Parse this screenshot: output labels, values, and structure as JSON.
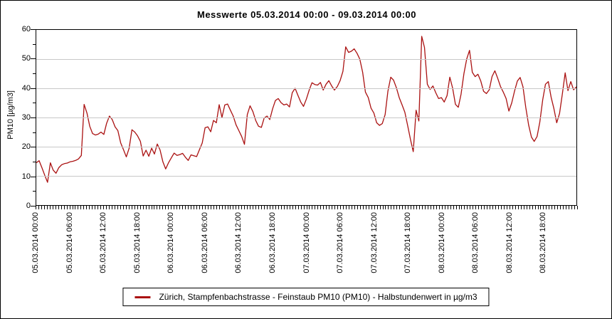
{
  "title": "Messwerte 05.03.2014 00:00 - 09.03.2014 00:00",
  "colors": {
    "line": "#aa1111",
    "grid": "#c8c8c8",
    "axis": "#000000",
    "background": "#ffffff"
  },
  "legend": {
    "label": "Zürich, Stampfenbachstrasse - Feinstaub PM10  (PM10) - Halbstundenwert in µg/m3",
    "line_color": "#aa1111"
  },
  "y_axis": {
    "title": "PM10 [µg/m3]",
    "tick_labels": [
      "0",
      "10",
      "20",
      "30",
      "40",
      "50",
      "60"
    ],
    "major_step": 10,
    "minor_step": 5
  },
  "x_axis": {
    "tick_labels": [
      "05.03.2014 00:00",
      "05.03.2014 06:00",
      "05.03.2014 12:00",
      "05.03.2014 18:00",
      "06.03.2014 00:00",
      "06.03.2014 06:00",
      "06.03.2014 12:00",
      "06.03.2014 18:00",
      "07.03.2014 00:00",
      "07.03.2014 06:00",
      "07.03.2014 12:00",
      "07.03.2014 18:00",
      "08.03.2014 00:00",
      "08.03.2014 06:00",
      "08.03.2014 12:00",
      "08.03.2014 18:00"
    ],
    "minor_ticks_per_label": 12
  },
  "chart_data": {
    "type": "line",
    "title": "Messwerte 05.03.2014 00:00 - 09.03.2014 00:00",
    "xlabel": "",
    "ylabel": "PM10 [µg/m3]",
    "ylim": [
      0,
      60
    ],
    "xlim": [
      "05.03.2014 00:00",
      "09.03.2014 00:00"
    ],
    "grid": "horizontal-only",
    "legend_position": "bottom-center",
    "x_start": "05.03.2014 00:00",
    "x_step_minutes": 30,
    "series": [
      {
        "name": "Zürich, Stampfenbachstrasse - Feinstaub PM10  (PM10) - Halbstundenwert in µg/m3",
        "color": "#aa1111",
        "values": [
          14.5,
          15.2,
          12.8,
          10.2,
          7.8,
          14.5,
          12,
          10.9,
          12.8,
          13.8,
          14.2,
          14.4,
          14.8,
          15,
          15.3,
          15.8,
          17,
          34.5,
          31.5,
          27,
          24.5,
          24,
          24.3,
          25,
          24.2,
          28,
          30.5,
          29.3,
          26.8,
          25.5,
          21.3,
          19,
          16.5,
          19.5,
          25.8,
          25,
          23.7,
          21.8,
          16.8,
          18.8,
          16.7,
          19.5,
          17.5,
          20.9,
          18.9,
          14.8,
          12.4,
          14.5,
          16.2,
          17.8,
          17,
          17.3,
          17.7,
          16.4,
          15.3,
          17.2,
          16.9,
          16.6,
          19,
          21.3,
          26.5,
          26.8,
          25.1,
          29,
          28.2,
          34.4,
          30,
          34.3,
          34.6,
          32.5,
          30.5,
          27.5,
          25.5,
          23.5,
          20.8,
          31,
          34,
          32,
          29,
          27,
          26.6,
          29.8,
          30.5,
          29.3,
          33,
          35.8,
          36.5,
          35.1,
          34.3,
          34.6,
          33.6,
          38.5,
          40,
          37.6,
          35.3,
          33.8,
          36.3,
          39.4,
          41.9,
          41.3,
          41.1,
          42,
          39.4,
          41.4,
          42.6,
          40.8,
          39.4,
          40.6,
          42.6,
          45.8,
          54.2,
          52.3,
          52.7,
          53.5,
          52,
          50,
          45.5,
          38.7,
          36.8,
          33.2,
          31.5,
          28.2,
          27.3,
          27.9,
          31,
          39,
          43.8,
          42.8,
          40.2,
          36.8,
          34.4,
          31.8,
          27.3,
          22.5,
          18.3,
          32.5,
          28.8,
          57.8,
          54,
          41.4,
          39.6,
          40.8,
          38.5,
          36.5,
          36.8,
          35.3,
          37.5,
          43.8,
          40,
          34.5,
          33.5,
          38,
          45,
          50,
          53,
          45.5,
          44,
          44.8,
          42.5,
          39,
          38.2,
          39.5,
          44,
          46,
          43.5,
          40.6,
          38.7,
          36.5,
          32.2,
          35,
          39,
          42.5,
          43.7,
          40.5,
          33.5,
          27.5,
          23.3,
          21.8,
          23.5,
          28.5,
          36,
          41.4,
          42.3,
          37,
          33,
          28.2,
          31.4,
          38,
          45.3,
          39.2,
          42.3,
          39.5,
          40.5
        ]
      }
    ]
  }
}
